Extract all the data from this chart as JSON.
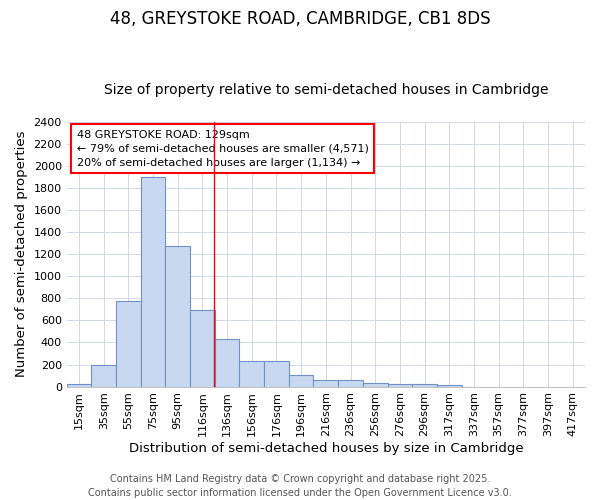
{
  "title": "48, GREYSTOKE ROAD, CAMBRIDGE, CB1 8DS",
  "subtitle": "Size of property relative to semi-detached houses in Cambridge",
  "xlabel": "Distribution of semi-detached houses by size in Cambridge",
  "ylabel": "Number of semi-detached properties",
  "categories": [
    "15sqm",
    "35sqm",
    "55sqm",
    "75sqm",
    "95sqm",
    "116sqm",
    "136sqm",
    "156sqm",
    "176sqm",
    "196sqm",
    "216sqm",
    "236sqm",
    "256sqm",
    "276sqm",
    "296sqm",
    "317sqm",
    "337sqm",
    "357sqm",
    "377sqm",
    "397sqm",
    "417sqm"
  ],
  "values": [
    25,
    200,
    775,
    1900,
    1275,
    695,
    435,
    230,
    230,
    105,
    60,
    60,
    35,
    25,
    20,
    10,
    0,
    0,
    0,
    0,
    0
  ],
  "bar_color": "#c8d8f0",
  "bar_edge_color": "#7090c8",
  "bar_edge_width": 0.8,
  "ylim": [
    0,
    2400
  ],
  "yticks": [
    0,
    200,
    400,
    600,
    800,
    1000,
    1200,
    1400,
    1600,
    1800,
    2000,
    2200,
    2400
  ],
  "red_line_x": 5.45,
  "annotation_title": "48 GREYSTOKE ROAD: 129sqm",
  "annotation_line2": "← 79% of semi-detached houses are smaller (4,571)",
  "annotation_line3": "20% of semi-detached houses are larger (1,134) →",
  "footer_line1": "Contains HM Land Registry data © Crown copyright and database right 2025.",
  "footer_line2": "Contains public sector information licensed under the Open Government Licence v3.0.",
  "background_color": "#ffffff",
  "grid_color": "#d0d8e8",
  "title_fontsize": 12,
  "subtitle_fontsize": 10,
  "axis_label_fontsize": 9.5,
  "tick_fontsize": 8,
  "annotation_fontsize": 8,
  "footer_fontsize": 7
}
